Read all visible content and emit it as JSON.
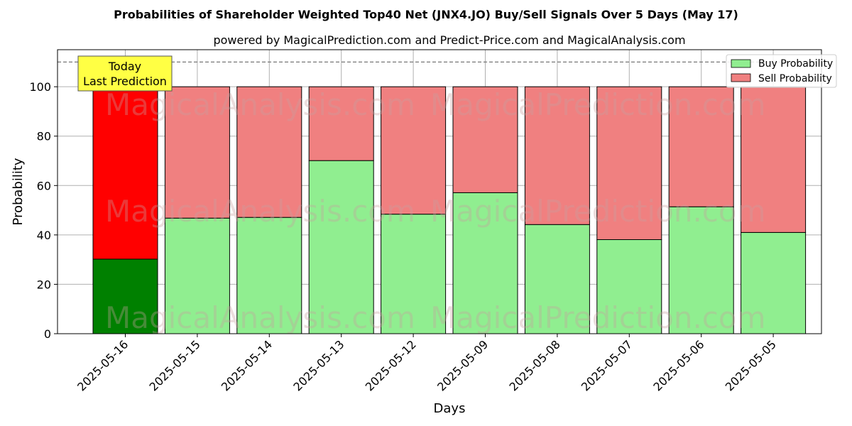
{
  "chart_data": {
    "type": "bar",
    "title": "Probabilities of Shareholder Weighted Top40 Net  (JNX4.JO) Buy/Sell Signals Over 5 Days (May 17)",
    "subtitle": "powered by MagicalPrediction.com and Predict-Price.com and MagicalAnalysis.com",
    "xlabel": "Days",
    "ylabel": "Probability",
    "ylim": [
      0,
      115
    ],
    "yticks": [
      0,
      20,
      40,
      60,
      80,
      100
    ],
    "threshold_line": 110,
    "grid": true,
    "stacked": true,
    "legend_position": "top-right",
    "categories": [
      "2025-05-16",
      "2025-05-15",
      "2025-05-14",
      "2025-05-13",
      "2025-05-12",
      "2025-05-09",
      "2025-05-08",
      "2025-05-07",
      "2025-05-06",
      "2025-05-05"
    ],
    "series": [
      {
        "name": "Buy Probability",
        "values": [
          30.2,
          46.8,
          47.1,
          70.1,
          48.4,
          57.1,
          44.2,
          38.1,
          51.4,
          41.0
        ]
      },
      {
        "name": "Sell Probability",
        "values": [
          69.8,
          53.2,
          52.9,
          29.9,
          51.6,
          42.9,
          55.8,
          61.9,
          48.6,
          59.0
        ]
      }
    ],
    "colors": {
      "buy": "#90ee90",
      "sell": "#f08080",
      "today_buy": "#008000",
      "today_sell": "#ff0000",
      "annotation_bg": "#ffff44"
    },
    "annotation": {
      "line1": "Today",
      "line2": "Last Prediction"
    },
    "watermarks": [
      "MagicalAnalysis.com",
      "MagicalPrediction.com"
    ]
  }
}
